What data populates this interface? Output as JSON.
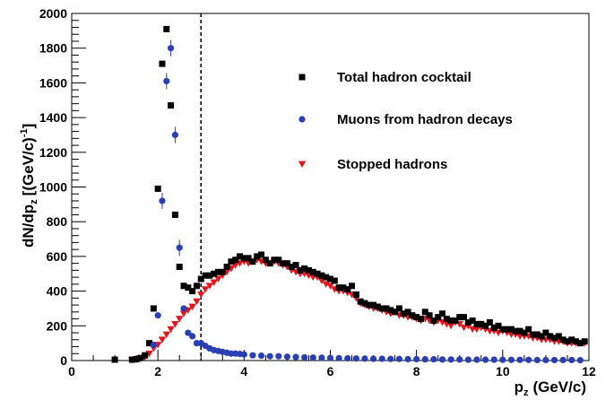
{
  "chart_data": {
    "type": "scatter",
    "title": "",
    "xlabel": "p",
    "xlabel_sub": "z",
    "xlabel_unit": "(GeV/c)",
    "ylabel": "dN/dp",
    "ylabel_sub": "z",
    "ylabel_unit": "[(GeV/c)",
    "ylabel_sup": "-1",
    "ylabel_close": "]",
    "xlim": [
      0,
      12
    ],
    "ylim": [
      0,
      2000
    ],
    "x_ticks": [
      0,
      2,
      4,
      6,
      8,
      10,
      12
    ],
    "x_tick_labels": [
      "0",
      "2",
      "4",
      "6",
      "8",
      "10",
      "12"
    ],
    "y_ticks": [
      0,
      200,
      400,
      600,
      800,
      1000,
      1200,
      1400,
      1600,
      1800,
      2000
    ],
    "y_tick_labels": [
      "0",
      "200",
      "400",
      "600",
      "800",
      "1000",
      "1200",
      "1400",
      "1600",
      "1800",
      "2000"
    ],
    "grid": false,
    "legend_position": "upper-right",
    "vertical_line": {
      "x": 3.0,
      "style": "dashed",
      "color": "#000000"
    },
    "series": [
      {
        "name": "Total hadron cocktail",
        "marker": "square",
        "color": "#000000",
        "x": [
          1.0,
          1.4,
          1.5,
          1.6,
          1.7,
          1.8,
          1.9,
          2.0,
          2.1,
          2.2,
          2.3,
          2.4,
          2.5,
          2.6,
          2.7,
          2.8,
          2.9,
          3.0,
          3.1,
          3.2,
          3.3,
          3.4,
          3.5,
          3.6,
          3.7,
          3.8,
          3.9,
          4.0,
          4.1,
          4.2,
          4.3,
          4.4,
          4.5,
          4.6,
          4.7,
          4.8,
          4.9,
          5.0,
          5.1,
          5.2,
          5.3,
          5.4,
          5.5,
          5.6,
          5.7,
          5.8,
          5.9,
          6.0,
          6.1,
          6.2,
          6.3,
          6.4,
          6.5,
          6.6,
          6.7,
          6.8,
          6.9,
          7.0,
          7.1,
          7.2,
          7.3,
          7.4,
          7.5,
          7.6,
          7.7,
          7.8,
          7.9,
          8.0,
          8.1,
          8.2,
          8.3,
          8.4,
          8.5,
          8.6,
          8.7,
          8.8,
          8.9,
          9.0,
          9.1,
          9.2,
          9.3,
          9.4,
          9.5,
          9.6,
          9.7,
          9.8,
          9.9,
          10.0,
          10.1,
          10.2,
          10.3,
          10.4,
          10.5,
          10.6,
          10.7,
          10.8,
          10.9,
          11.0,
          11.1,
          11.2,
          11.3,
          11.4,
          11.5,
          11.6,
          11.7,
          11.8,
          11.9
        ],
        "y": [
          5,
          5,
          8,
          15,
          30,
          100,
          300,
          990,
          1710,
          1910,
          1470,
          840,
          540,
          430,
          420,
          400,
          430,
          470,
          490,
          490,
          500,
          510,
          510,
          540,
          570,
          580,
          600,
          590,
          590,
          570,
          600,
          610,
          580,
          560,
          580,
          580,
          560,
          560,
          540,
          550,
          520,
          530,
          520,
          510,
          500,
          490,
          480,
          470,
          460,
          420,
          420,
          410,
          430,
          380,
          340,
          330,
          320,
          320,
          310,
          300,
          300,
          290,
          280,
          300,
          270,
          280,
          260,
          250,
          240,
          280,
          260,
          230,
          250,
          270,
          240,
          230,
          230,
          250,
          250,
          220,
          230,
          210,
          210,
          200,
          220,
          190,
          200,
          180,
          180,
          180,
          170,
          170,
          160,
          180,
          150,
          150,
          140,
          160,
          140,
          130,
          140,
          120,
          110,
          120,
          110,
          100,
          110
        ]
      },
      {
        "name": "Muons from hadron decays",
        "marker": "circle",
        "color": "#2b3fb5",
        "x": [
          1.9,
          2.0,
          2.1,
          2.2,
          2.3,
          2.4,
          2.5,
          2.6,
          2.7,
          2.8,
          2.9,
          3.0,
          3.1,
          3.2,
          3.3,
          3.4,
          3.5,
          3.6,
          3.7,
          3.8,
          3.9,
          4.0,
          4.2,
          4.4,
          4.6,
          4.8,
          5.0,
          5.2,
          5.4,
          5.6,
          5.8,
          6.0,
          6.2,
          6.4,
          6.6,
          6.8,
          7.0,
          7.2,
          7.4,
          7.6,
          7.8,
          8.0,
          8.2,
          8.4,
          8.6,
          8.8,
          9.0,
          9.2,
          9.4,
          9.6,
          9.8,
          10.0,
          10.2,
          10.4,
          10.6,
          10.8,
          11.0,
          11.2,
          11.4,
          11.6,
          11.8
        ],
        "y": [
          90,
          260,
          920,
          1610,
          1800,
          1300,
          650,
          300,
          160,
          140,
          100,
          100,
          85,
          70,
          60,
          55,
          50,
          45,
          40,
          40,
          38,
          35,
          30,
          28,
          25,
          25,
          22,
          20,
          18,
          17,
          16,
          15,
          14,
          13,
          12,
          11,
          10,
          10,
          9,
          9,
          8,
          8,
          7,
          7,
          6,
          6,
          6,
          5,
          5,
          5,
          5,
          4,
          4,
          4,
          4,
          3,
          3,
          3,
          3,
          3,
          2
        ]
      },
      {
        "name": "Stopped hadrons",
        "marker": "triangle-down",
        "color": "#e8141c",
        "x": [
          1.4,
          1.5,
          1.6,
          1.7,
          1.8,
          1.9,
          2.0,
          2.1,
          2.2,
          2.3,
          2.4,
          2.5,
          2.6,
          2.7,
          2.8,
          2.9,
          3.0,
          3.1,
          3.2,
          3.3,
          3.4,
          3.5,
          3.6,
          3.7,
          3.8,
          3.9,
          4.0,
          4.1,
          4.2,
          4.3,
          4.4,
          4.5,
          4.6,
          4.7,
          4.8,
          4.9,
          5.0,
          5.1,
          5.2,
          5.3,
          5.4,
          5.5,
          5.6,
          5.7,
          5.8,
          5.9,
          6.0,
          6.1,
          6.2,
          6.3,
          6.4,
          6.5,
          6.6,
          6.7,
          6.8,
          6.9,
          7.0,
          7.1,
          7.2,
          7.3,
          7.4,
          7.5,
          7.6,
          7.7,
          7.8,
          7.9,
          8.0,
          8.1,
          8.2,
          8.3,
          8.4,
          8.5,
          8.6,
          8.7,
          8.8,
          8.9,
          9.0,
          9.1,
          9.2,
          9.3,
          9.4,
          9.5,
          9.6,
          9.7,
          9.8,
          9.9,
          10.0,
          10.1,
          10.2,
          10.3,
          10.4,
          10.5,
          10.6,
          10.7,
          10.8,
          10.9,
          11.0,
          11.1,
          11.2,
          11.3,
          11.4,
          11.5,
          11.6,
          11.7,
          11.8,
          11.9
        ],
        "y": [
          3,
          5,
          10,
          20,
          40,
          70,
          90,
          120,
          150,
          180,
          210,
          240,
          270,
          290,
          310,
          340,
          380,
          410,
          430,
          450,
          470,
          490,
          510,
          530,
          550,
          560,
          570,
          560,
          570,
          580,
          570,
          560,
          560,
          570,
          560,
          550,
          540,
          520,
          510,
          500,
          500,
          490,
          480,
          480,
          460,
          440,
          430,
          410,
          400,
          400,
          390,
          380,
          360,
          330,
          320,
          310,
          300,
          300,
          290,
          280,
          270,
          280,
          260,
          260,
          250,
          250,
          240,
          230,
          240,
          230,
          220,
          230,
          220,
          210,
          200,
          220,
          210,
          190,
          200,
          180,
          180,
          190,
          180,
          170,
          170,
          160,
          170,
          160,
          150,
          150,
          140,
          140,
          140,
          130,
          130,
          120,
          120,
          120,
          110,
          110,
          110,
          100,
          100,
          100,
          100,
          100
        ]
      }
    ]
  }
}
